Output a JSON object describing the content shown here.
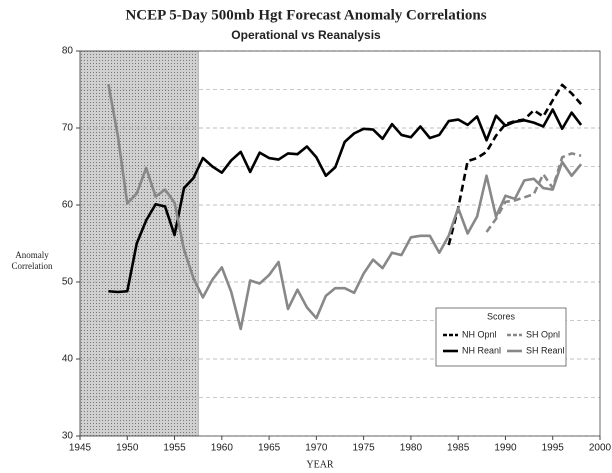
{
  "chart_data": {
    "type": "line",
    "title": "NCEP 5-Day 500mb Hgt Forecast Anomaly Correlations",
    "subtitle": "Operational vs Reanalysis",
    "xlabel": "YEAR",
    "ylabel": [
      "Anomaly",
      "Correlation"
    ],
    "legend_title": "Scores",
    "legend_position": "lower right",
    "xlim": [
      1945,
      2000
    ],
    "xticks": [
      1945,
      1950,
      1955,
      1960,
      1965,
      1970,
      1975,
      1980,
      1985,
      1990,
      1995,
      2000
    ],
    "ylim": [
      30,
      80
    ],
    "yticks": [
      30,
      40,
      50,
      60,
      70,
      80
    ],
    "minor_yticks": [
      35,
      45,
      55,
      65,
      75
    ],
    "grid": true,
    "shaded_xrange": [
      1945,
      1957.5
    ],
    "x": [
      1948,
      1949,
      1950,
      1951,
      1952,
      1953,
      1954,
      1955,
      1956,
      1957,
      1958,
      1959,
      1960,
      1961,
      1962,
      1963,
      1964,
      1965,
      1966,
      1967,
      1968,
      1969,
      1970,
      1971,
      1972,
      1973,
      1974,
      1975,
      1976,
      1977,
      1978,
      1979,
      1980,
      1981,
      1982,
      1983,
      1984,
      1985,
      1986,
      1987,
      1988,
      1989,
      1990,
      1991,
      1992,
      1993,
      1994,
      1995,
      1996,
      1997,
      1998
    ],
    "series": [
      {
        "name": "NH Opnl",
        "color": "#000000",
        "dashed": true,
        "values": [
          null,
          null,
          null,
          null,
          null,
          null,
          null,
          null,
          null,
          null,
          null,
          null,
          null,
          null,
          null,
          null,
          null,
          null,
          null,
          null,
          null,
          null,
          null,
          null,
          null,
          null,
          null,
          null,
          null,
          null,
          null,
          null,
          null,
          null,
          null,
          null,
          54.8,
          59.6,
          65.7,
          66.1,
          66.9,
          69,
          70.5,
          70.9,
          71.1,
          72.3,
          71.5,
          73.6,
          75.6,
          74.5,
          73.1
        ]
      },
      {
        "name": "SH Opnl",
        "color": "#888888",
        "dashed": true,
        "values": [
          null,
          null,
          null,
          null,
          null,
          null,
          null,
          null,
          null,
          null,
          null,
          null,
          null,
          null,
          null,
          null,
          null,
          null,
          null,
          null,
          null,
          null,
          null,
          null,
          null,
          null,
          null,
          null,
          null,
          null,
          null,
          null,
          null,
          null,
          null,
          null,
          null,
          null,
          null,
          null,
          56.5,
          58.2,
          60.4,
          60.6,
          61,
          61.4,
          64,
          62.2,
          66.2,
          66.7,
          66.4
        ]
      },
      {
        "name": "NH Reanl",
        "color": "#000000",
        "dashed": false,
        "values": [
          48.8,
          48.7,
          48.8,
          55,
          58,
          60.1,
          59.8,
          56.1,
          62.2,
          63.5,
          66.1,
          65,
          64.2,
          65.8,
          66.9,
          64.3,
          66.8,
          66.1,
          65.9,
          66.7,
          66.6,
          67.6,
          66.2,
          63.8,
          64.9,
          68.2,
          69.3,
          69.9,
          69.8,
          68.6,
          70.5,
          69.1,
          68.8,
          70.2,
          68.7,
          69.1,
          70.9,
          71.1,
          70.4,
          71.5,
          68.4,
          71.6,
          70.3,
          70.8,
          71,
          70.7,
          70.2,
          72.4,
          69.9,
          72,
          70.4
        ]
      },
      {
        "name": "SH Reanl",
        "color": "#888888",
        "dashed": false,
        "values": [
          75.7,
          69,
          60.2,
          61.5,
          64.8,
          61.1,
          62,
          60.3,
          54.2,
          50.5,
          48,
          50.3,
          51.9,
          48.7,
          43.9,
          50.2,
          49.8,
          50.9,
          52.6,
          46.5,
          49,
          46.7,
          45.3,
          48.2,
          49.2,
          49.2,
          48.6,
          51.1,
          52.9,
          51.8,
          53.8,
          53.5,
          55.8,
          56,
          56,
          53.8,
          56,
          59.6,
          56.3,
          58.5,
          63.8,
          58.5,
          61.2,
          60.8,
          63.2,
          63.4,
          62.2,
          62,
          65.6,
          63.8,
          65.3
        ]
      }
    ]
  }
}
